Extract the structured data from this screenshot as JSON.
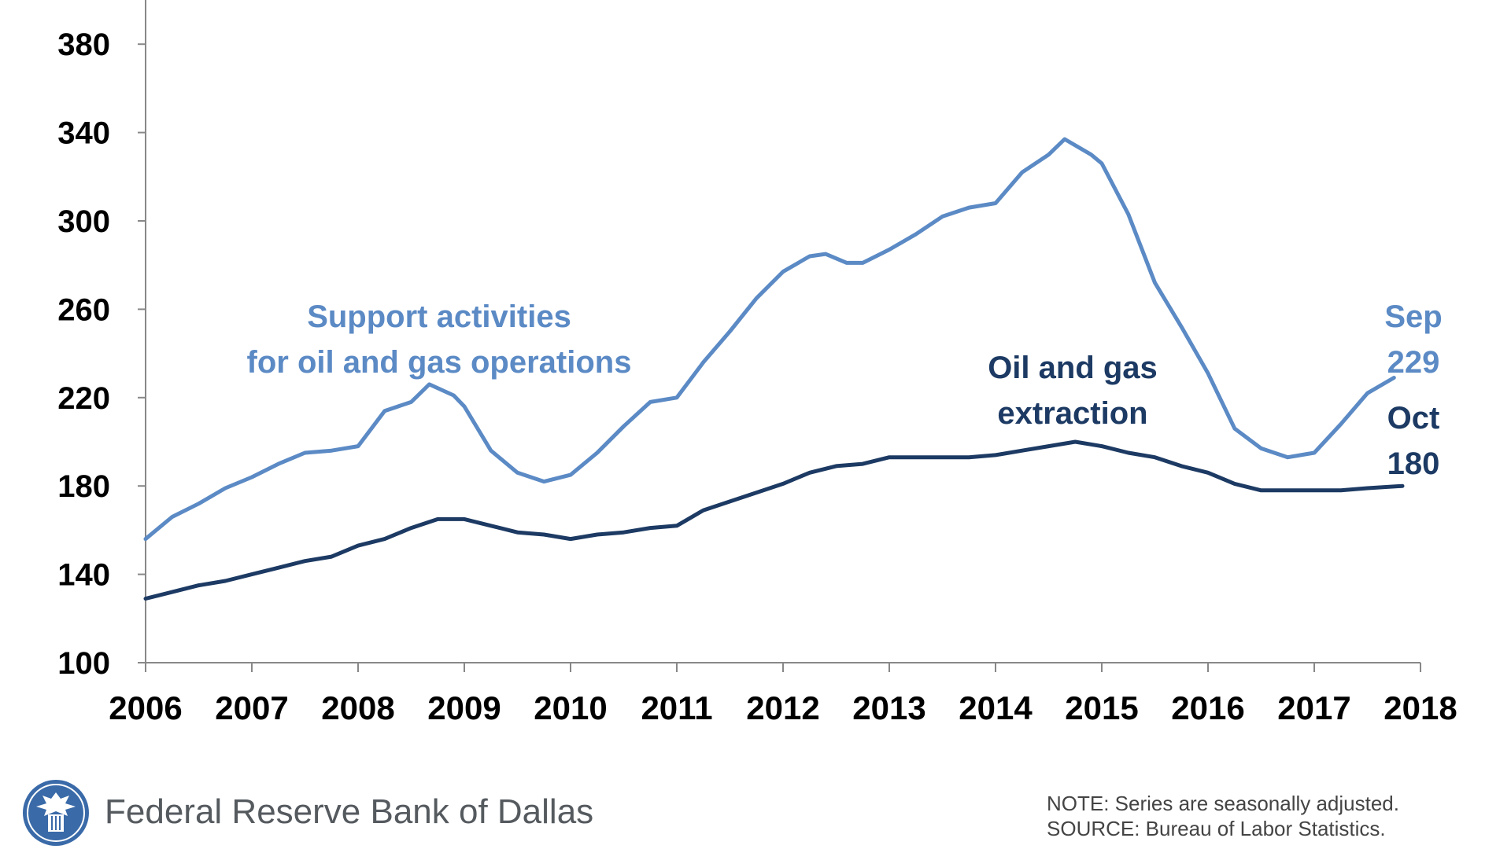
{
  "chart_data": {
    "type": "line",
    "title": "",
    "xlabel": "",
    "ylabel": "",
    "ylim": [
      100,
      400
    ],
    "xlim": [
      2006,
      2018
    ],
    "yticks": [
      "100",
      "140",
      "180",
      "220",
      "260",
      "300",
      "340",
      "380"
    ],
    "xticks": [
      "2006",
      "2007",
      "2008",
      "2009",
      "2010",
      "2011",
      "2012",
      "2013",
      "2014",
      "2015",
      "2016",
      "2017",
      "2018"
    ],
    "grid": false,
    "colors": {
      "support": "#5b8ac5",
      "extraction": "#1c3a63"
    },
    "series": [
      {
        "name": "Support activities for oil and gas operations",
        "label_lines": [
          "Support activities",
          "for oil and gas operations"
        ],
        "color": "#5b8ac5",
        "x": [
          2006.0,
          2006.25,
          2006.5,
          2006.75,
          2007.0,
          2007.25,
          2007.5,
          2007.75,
          2008.0,
          2008.25,
          2008.5,
          2008.67,
          2008.9,
          2009.0,
          2009.25,
          2009.5,
          2009.75,
          2010.0,
          2010.25,
          2010.5,
          2010.75,
          2011.0,
          2011.25,
          2011.5,
          2011.75,
          2012.0,
          2012.25,
          2012.4,
          2012.6,
          2012.75,
          2013.0,
          2013.25,
          2013.5,
          2013.75,
          2014.0,
          2014.25,
          2014.5,
          2014.65,
          2014.9,
          2015.0,
          2015.25,
          2015.5,
          2015.75,
          2016.0,
          2016.25,
          2016.5,
          2016.75,
          2017.0,
          2017.25,
          2017.5,
          2017.75
        ],
        "y": [
          156,
          166,
          172,
          179,
          184,
          190,
          195,
          196,
          198,
          214,
          218,
          226,
          221,
          216,
          196,
          186,
          182,
          185,
          195,
          207,
          218,
          220,
          236,
          250,
          265,
          277,
          284,
          285,
          281,
          281,
          287,
          294,
          302,
          306,
          308,
          322,
          330,
          337,
          330,
          326,
          303,
          272,
          252,
          231,
          206,
          197,
          193,
          195,
          208,
          222,
          229
        ]
      },
      {
        "name": "Oil and gas extraction",
        "label_lines": [
          "Oil and gas",
          "extraction"
        ],
        "color": "#1c3a63",
        "x": [
          2006.0,
          2006.25,
          2006.5,
          2006.75,
          2007.0,
          2007.25,
          2007.5,
          2007.75,
          2008.0,
          2008.25,
          2008.5,
          2008.75,
          2009.0,
          2009.25,
          2009.5,
          2009.75,
          2010.0,
          2010.25,
          2010.5,
          2010.75,
          2011.0,
          2011.25,
          2011.5,
          2011.75,
          2012.0,
          2012.25,
          2012.5,
          2012.75,
          2013.0,
          2013.25,
          2013.5,
          2013.75,
          2014.0,
          2014.25,
          2014.5,
          2014.75,
          2015.0,
          2015.25,
          2015.5,
          2015.75,
          2016.0,
          2016.25,
          2016.5,
          2016.75,
          2017.0,
          2017.25,
          2017.5,
          2017.83
        ],
        "y": [
          129,
          132,
          135,
          137,
          140,
          143,
          146,
          148,
          153,
          156,
          161,
          165,
          165,
          162,
          159,
          158,
          156,
          158,
          159,
          161,
          162,
          169,
          173,
          177,
          181,
          186,
          189,
          190,
          193,
          193,
          193,
          193,
          194,
          196,
          198,
          200,
          198,
          195,
          193,
          189,
          186,
          181,
          178,
          178,
          178,
          178,
          179,
          180
        ]
      }
    ],
    "end_labels": [
      {
        "month": "Sep",
        "value": "229",
        "color": "#5b8ac5"
      },
      {
        "month": "Oct",
        "value": "180",
        "color": "#1c3a63"
      }
    ]
  },
  "footer": {
    "org_name": "Federal Reserve Bank of Dallas",
    "note": "NOTE: Series are seasonally adjusted.",
    "source": "SOURCE: Bureau of Labor Statistics."
  },
  "icons": {
    "logo": "federal-reserve-eagle-seal-icon"
  }
}
